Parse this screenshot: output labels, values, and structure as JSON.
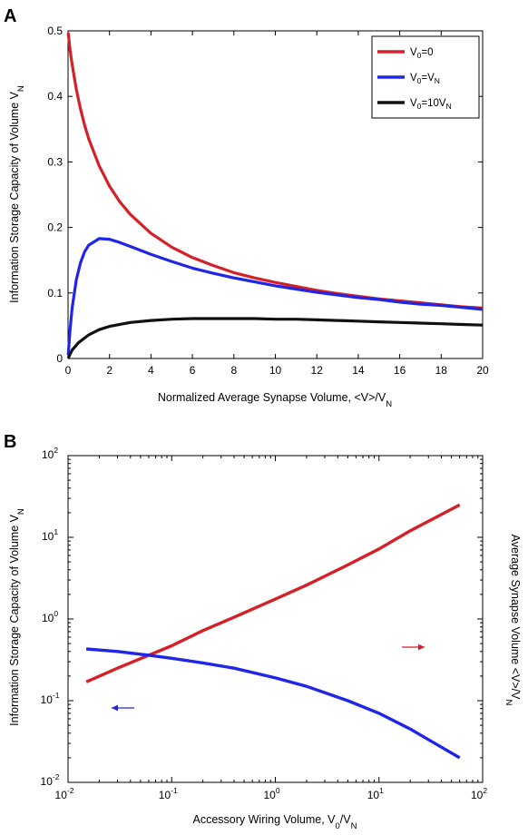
{
  "chart_data": [
    {
      "panel_label": "A",
      "type": "line",
      "ylabel": "Information Storage Capacity of Volume V_N",
      "xlabel": "Normalized Average Synapse Volume, <V>/V_N",
      "xlim": [
        0,
        20
      ],
      "ylim": [
        0,
        0.5
      ],
      "x_ticks": [
        0,
        2,
        4,
        6,
        8,
        10,
        12,
        14,
        16,
        18,
        20
      ],
      "y_ticks": [
        0,
        0.1,
        0.2,
        0.3,
        0.4,
        0.5
      ],
      "x_tick_labels": [
        "0",
        "2",
        "4",
        "6",
        "8",
        "10",
        "12",
        "14",
        "16",
        "18",
        "20"
      ],
      "y_tick_labels": [
        "0",
        "0.1",
        "0.2",
        "0.3",
        "0.4",
        "0.5"
      ],
      "grid": false,
      "legend_position": "top-right",
      "series": [
        {
          "name": "V0=0",
          "legend_main": "V",
          "legend_sub": "0",
          "legend_rest": "=0",
          "color": "#d42027",
          "x": [
            0.01,
            0.1,
            0.2,
            0.4,
            0.6,
            0.8,
            1,
            1.5,
            2,
            2.5,
            3,
            4,
            5,
            6,
            7,
            8,
            9,
            10,
            11,
            12,
            13,
            14,
            15,
            16,
            17,
            18,
            19,
            20
          ],
          "y": [
            0.497,
            0.47,
            0.448,
            0.411,
            0.381,
            0.356,
            0.335,
            0.294,
            0.263,
            0.239,
            0.22,
            0.191,
            0.17,
            0.154,
            0.142,
            0.131,
            0.123,
            0.116,
            0.11,
            0.104,
            0.099,
            0.095,
            0.091,
            0.088,
            0.085,
            0.082,
            0.079,
            0.077
          ]
        },
        {
          "name": "V0=VN",
          "legend_main": "V",
          "legend_sub": "0",
          "legend_rest": "=V",
          "legend_sub2": "N",
          "color": "#1f26e8",
          "x": [
            0.01,
            0.1,
            0.2,
            0.4,
            0.6,
            0.8,
            1,
            1.5,
            2,
            2.5,
            3,
            4,
            5,
            6,
            7,
            8,
            9,
            10,
            11,
            12,
            13,
            14,
            15,
            16,
            17,
            18,
            19,
            20
          ],
          "y": [
            0.005,
            0.045,
            0.078,
            0.12,
            0.146,
            0.163,
            0.173,
            0.183,
            0.182,
            0.177,
            0.171,
            0.159,
            0.148,
            0.138,
            0.13,
            0.123,
            0.117,
            0.111,
            0.106,
            0.101,
            0.097,
            0.093,
            0.09,
            0.086,
            0.083,
            0.081,
            0.078,
            0.075
          ]
        },
        {
          "name": "V0=10VN",
          "legend_main": "V",
          "legend_sub": "0",
          "legend_rest": "=10V",
          "legend_sub2": "N",
          "color": "#111111",
          "x": [
            0.01,
            0.2,
            0.5,
            1,
            1.5,
            2,
            3,
            4,
            5,
            6,
            7,
            8,
            9,
            10,
            11,
            12,
            13,
            14,
            15,
            16,
            17,
            18,
            19,
            20
          ],
          "y": [
            0.001,
            0.013,
            0.024,
            0.036,
            0.044,
            0.049,
            0.055,
            0.058,
            0.06,
            0.061,
            0.061,
            0.061,
            0.061,
            0.06,
            0.06,
            0.059,
            0.058,
            0.057,
            0.056,
            0.055,
            0.054,
            0.053,
            0.052,
            0.051
          ]
        }
      ]
    },
    {
      "panel_label": "B",
      "type": "line",
      "x_scale": "log",
      "y_scale": "log",
      "ylabel": "Information Storage Capacity of Volume V_N",
      "ylabel_right": "Average Synapse Volume <V>/V_N",
      "xlabel": "Accessory Wiring Volume, V_0/V_N",
      "xlim": [
        0.01,
        100
      ],
      "ylim": [
        0.01,
        100
      ],
      "x_tick_exponents": [
        "-2",
        "-1",
        "0",
        "1",
        "2"
      ],
      "y_tick_exponents": [
        "-2",
        "-1",
        "0",
        "1",
        "2"
      ],
      "tick_base": "10",
      "grid": false,
      "series": [
        {
          "name": "Average Synapse Volume",
          "axis": "right",
          "color": "#d42027",
          "x": [
            0.015,
            0.03,
            0.06,
            0.1,
            0.2,
            0.4,
            1,
            2,
            5,
            10,
            20,
            40,
            60
          ],
          "y": [
            0.17,
            0.25,
            0.36,
            0.47,
            0.72,
            1.05,
            1.75,
            2.6,
            4.6,
            7.2,
            12,
            19,
            25
          ]
        },
        {
          "name": "Information Storage Capacity",
          "axis": "left",
          "color": "#1f26e8",
          "x": [
            0.015,
            0.03,
            0.06,
            0.1,
            0.2,
            0.4,
            1,
            2,
            5,
            10,
            20,
            40,
            60
          ],
          "y": [
            0.43,
            0.4,
            0.36,
            0.33,
            0.29,
            0.25,
            0.19,
            0.15,
            0.1,
            0.07,
            0.045,
            0.027,
            0.02
          ]
        }
      ]
    }
  ]
}
